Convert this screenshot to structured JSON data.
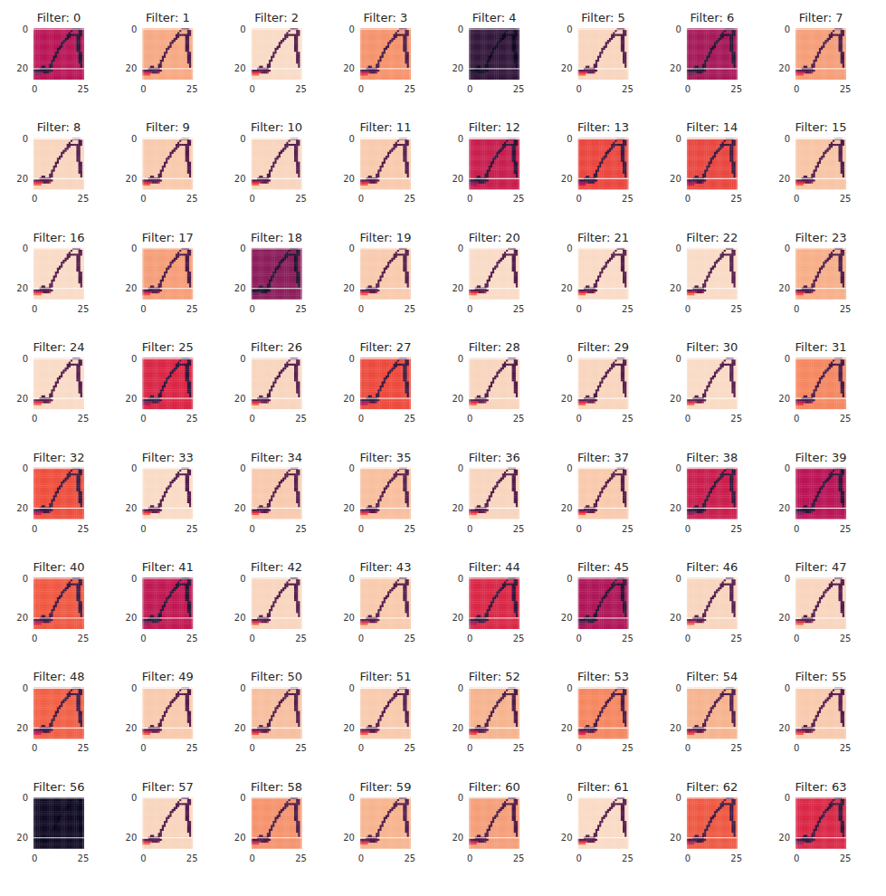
{
  "chart_data": {
    "type": "heatmap",
    "grid": true,
    "xlim": [
      -0.5,
      25.5
    ],
    "ylim": [
      25.5,
      -0.5
    ],
    "xticks": [
      0,
      25
    ],
    "yticks": [
      0,
      20
    ],
    "panels": [
      {
        "title": "Filter: 0",
        "background": 0.5
      },
      {
        "title": "Filter: 1",
        "background": 0.88
      },
      {
        "title": "Filter: 2",
        "background": 0.97
      },
      {
        "title": "Filter: 3",
        "background": 0.84
      },
      {
        "title": "Filter: 4",
        "background": 0.15
      },
      {
        "title": "Filter: 5",
        "background": 0.96
      },
      {
        "title": "Filter: 6",
        "background": 0.45
      },
      {
        "title": "Filter: 7",
        "background": 0.86
      },
      {
        "title": "Filter: 8",
        "background": 0.96
      },
      {
        "title": "Filter: 9",
        "background": 0.94
      },
      {
        "title": "Filter: 10",
        "background": 0.96
      },
      {
        "title": "Filter: 11",
        "background": 0.94
      },
      {
        "title": "Filter: 12",
        "background": 0.55
      },
      {
        "title": "Filter: 13",
        "background": 0.68
      },
      {
        "title": "Filter: 14",
        "background": 0.68
      },
      {
        "title": "Filter: 15",
        "background": 0.93
      },
      {
        "title": "Filter: 16",
        "background": 0.97
      },
      {
        "title": "Filter: 17",
        "background": 0.86
      },
      {
        "title": "Filter: 18",
        "background": 0.38
      },
      {
        "title": "Filter: 19",
        "background": 0.94
      },
      {
        "title": "Filter: 20",
        "background": 0.97
      },
      {
        "title": "Filter: 21",
        "background": 0.97
      },
      {
        "title": "Filter: 22",
        "background": 0.97
      },
      {
        "title": "Filter: 23",
        "background": 0.89
      },
      {
        "title": "Filter: 24",
        "background": 0.97
      },
      {
        "title": "Filter: 25",
        "background": 0.6
      },
      {
        "title": "Filter: 26",
        "background": 0.96
      },
      {
        "title": "Filter: 27",
        "background": 0.69
      },
      {
        "title": "Filter: 28",
        "background": 0.96
      },
      {
        "title": "Filter: 29",
        "background": 0.96
      },
      {
        "title": "Filter: 30",
        "background": 0.97
      },
      {
        "title": "Filter: 31",
        "background": 0.82
      },
      {
        "title": "Filter: 32",
        "background": 0.7
      },
      {
        "title": "Filter: 33",
        "background": 0.97
      },
      {
        "title": "Filter: 34",
        "background": 0.94
      },
      {
        "title": "Filter: 35",
        "background": 0.92
      },
      {
        "title": "Filter: 36",
        "background": 0.96
      },
      {
        "title": "Filter: 37",
        "background": 0.94
      },
      {
        "title": "Filter: 38",
        "background": 0.55
      },
      {
        "title": "Filter: 39",
        "background": 0.5
      },
      {
        "title": "Filter: 40",
        "background": 0.72
      },
      {
        "title": "Filter: 41",
        "background": 0.52
      },
      {
        "title": "Filter: 42",
        "background": 0.96
      },
      {
        "title": "Filter: 43",
        "background": 0.94
      },
      {
        "title": "Filter: 44",
        "background": 0.6
      },
      {
        "title": "Filter: 45",
        "background": 0.47
      },
      {
        "title": "Filter: 46",
        "background": 0.96
      },
      {
        "title": "Filter: 47",
        "background": 0.96
      },
      {
        "title": "Filter: 48",
        "background": 0.74
      },
      {
        "title": "Filter: 49",
        "background": 0.94
      },
      {
        "title": "Filter: 50",
        "background": 0.92
      },
      {
        "title": "Filter: 51",
        "background": 0.94
      },
      {
        "title": "Filter: 52",
        "background": 0.9
      },
      {
        "title": "Filter: 53",
        "background": 0.82
      },
      {
        "title": "Filter: 54",
        "background": 0.9
      },
      {
        "title": "Filter: 55",
        "background": 0.94
      },
      {
        "title": "Filter: 56",
        "background": 0.05
      },
      {
        "title": "Filter: 57",
        "background": 0.96
      },
      {
        "title": "Filter: 58",
        "background": 0.84
      },
      {
        "title": "Filter: 59",
        "background": 0.9
      },
      {
        "title": "Filter: 60",
        "background": 0.86
      },
      {
        "title": "Filter: 61",
        "background": 0.97
      },
      {
        "title": "Filter: 62",
        "background": 0.72
      },
      {
        "title": "Filter: 63",
        "background": 0.6
      }
    ],
    "cells": [
      [
        0,
        0,
        0,
        0,
        0,
        0,
        0,
        0,
        0,
        0,
        0,
        0,
        0,
        0,
        0,
        0,
        0,
        0,
        0,
        0,
        1,
        1,
        1,
        1,
        0,
        0
      ],
      [
        0,
        0,
        0,
        0,
        0,
        0,
        0,
        0,
        0,
        0,
        0,
        0,
        0,
        0,
        0,
        0,
        0,
        0,
        0,
        1,
        0,
        0,
        0,
        1,
        1,
        0
      ],
      [
        0,
        0,
        0,
        0,
        0,
        0,
        0,
        0,
        0,
        0,
        0,
        0,
        0,
        0,
        0,
        0,
        0,
        0,
        1,
        0,
        0,
        0,
        0,
        1,
        1,
        0
      ],
      [
        0,
        0,
        0,
        0,
        0,
        0,
        0,
        0,
        0,
        0,
        0,
        0,
        0,
        0,
        0,
        0,
        0,
        1,
        1,
        1,
        1,
        1,
        1,
        1,
        1,
        0
      ],
      [
        0,
        0,
        0,
        0,
        0,
        0,
        0,
        0,
        0,
        0,
        0,
        0,
        0,
        0,
        0,
        0,
        0,
        1,
        1,
        0,
        0,
        0,
        1,
        1,
        0,
        0
      ],
      [
        0,
        0,
        0,
        0,
        0,
        0,
        0,
        0,
        0,
        0,
        0,
        0,
        0,
        0,
        0,
        0,
        1,
        1,
        0,
        0,
        0,
        0,
        1,
        1,
        0,
        0
      ],
      [
        0,
        0,
        0,
        0,
        0,
        0,
        0,
        0,
        0,
        0,
        0,
        0,
        0,
        0,
        0,
        1,
        1,
        0,
        0,
        0,
        0,
        0,
        1,
        1,
        0,
        0
      ],
      [
        0,
        0,
        0,
        0,
        0,
        0,
        0,
        0,
        0,
        0,
        0,
        0,
        0,
        0,
        1,
        1,
        0,
        0,
        0,
        0,
        0,
        0,
        1,
        1,
        0,
        0
      ],
      [
        0,
        0,
        0,
        0,
        0,
        0,
        0,
        0,
        0,
        0,
        0,
        0,
        0,
        0,
        1,
        0,
        0,
        0,
        0,
        0,
        0,
        0,
        1,
        1,
        0,
        0
      ],
      [
        0,
        0,
        0,
        0,
        0,
        0,
        0,
        0,
        0,
        0,
        0,
        0,
        0,
        1,
        1,
        0,
        0,
        0,
        0,
        0,
        0,
        0,
        1,
        1,
        0,
        0
      ],
      [
        0,
        0,
        0,
        0,
        0,
        0,
        0,
        0,
        0,
        0,
        0,
        0,
        1,
        1,
        0,
        0,
        0,
        0,
        0,
        0,
        0,
        0,
        1,
        1,
        0,
        0
      ],
      [
        0,
        0,
        0,
        0,
        0,
        0,
        0,
        0,
        0,
        0,
        0,
        0,
        1,
        0,
        0,
        0,
        0,
        0,
        0,
        0,
        0,
        0,
        1,
        1,
        0,
        0
      ],
      [
        0,
        0,
        0,
        0,
        0,
        0,
        0,
        0,
        0,
        0,
        0,
        1,
        1,
        0,
        0,
        0,
        0,
        0,
        0,
        0,
        0,
        0,
        0,
        1,
        1,
        0
      ],
      [
        0,
        0,
        0,
        0,
        0,
        0,
        0,
        0,
        0,
        0,
        0,
        1,
        0,
        0,
        0,
        0,
        0,
        0,
        0,
        0,
        0,
        0,
        0,
        1,
        1,
        0
      ],
      [
        0,
        0,
        0,
        0,
        0,
        0,
        0,
        0,
        0,
        0,
        1,
        1,
        0,
        0,
        0,
        0,
        0,
        0,
        0,
        0,
        0,
        0,
        0,
        1,
        1,
        0
      ],
      [
        0,
        0,
        0,
        0,
        0,
        0,
        0,
        0,
        0,
        0,
        1,
        0,
        0,
        0,
        0,
        0,
        0,
        0,
        0,
        0,
        0,
        0,
        0,
        1,
        1,
        0
      ],
      [
        0,
        0,
        0,
        0,
        0,
        0,
        0,
        0,
        0,
        1,
        1,
        0,
        0,
        0,
        0,
        0,
        0,
        0,
        0,
        0,
        0,
        0,
        0,
        1,
        1,
        0
      ],
      [
        0,
        0,
        0,
        0,
        0,
        0,
        0,
        0,
        0,
        1,
        0,
        0,
        0,
        0,
        0,
        0,
        0,
        0,
        0,
        0,
        0,
        0,
        0,
        1,
        1,
        0
      ],
      [
        0,
        0,
        0,
        0,
        0,
        0,
        0,
        0,
        1,
        1,
        0,
        0,
        0,
        0,
        0,
        0,
        0,
        0,
        0,
        0,
        0,
        0,
        0,
        0,
        1,
        0
      ],
      [
        0,
        0,
        0,
        0,
        1,
        1,
        0,
        0,
        1,
        1,
        0,
        0,
        0,
        0,
        0,
        0,
        0,
        0,
        0,
        0,
        0,
        0,
        0,
        0,
        1,
        0
      ],
      [
        0,
        0,
        0,
        1,
        1,
        1,
        1,
        1,
        1,
        0,
        0,
        0,
        0,
        0,
        0,
        0,
        0,
        0,
        0,
        0,
        0,
        0,
        0,
        0,
        0,
        0
      ],
      [
        1,
        1,
        1,
        1,
        1,
        1,
        1,
        1,
        1,
        1,
        0,
        0,
        0,
        0,
        0,
        0,
        0,
        0,
        0,
        0,
        0,
        0,
        0,
        0,
        0,
        0
      ],
      [
        0.5,
        0.5,
        0.5,
        0.5,
        0.5,
        1,
        1,
        1,
        0.5,
        0,
        0,
        0,
        0,
        0,
        0,
        0,
        0,
        0,
        0,
        0,
        0,
        0,
        0,
        0,
        0,
        0
      ],
      [
        0.3,
        0.3,
        0.3,
        0.3,
        0,
        0,
        0,
        0,
        0,
        0,
        0,
        0,
        0,
        0,
        0,
        0,
        0,
        0,
        0,
        0,
        0,
        0,
        0,
        0,
        0,
        0
      ],
      [
        0,
        0,
        0,
        0,
        0,
        0,
        0,
        0,
        0,
        0,
        0,
        0,
        0,
        0,
        0,
        0,
        0,
        0,
        0,
        0,
        0,
        0,
        0,
        0,
        0,
        0
      ],
      [
        0,
        0,
        0,
        0,
        0,
        0,
        0,
        0,
        0,
        0,
        0,
        0,
        0,
        0,
        0,
        0,
        0,
        0,
        0,
        0,
        0,
        0,
        0,
        0,
        0,
        0
      ]
    ]
  }
}
